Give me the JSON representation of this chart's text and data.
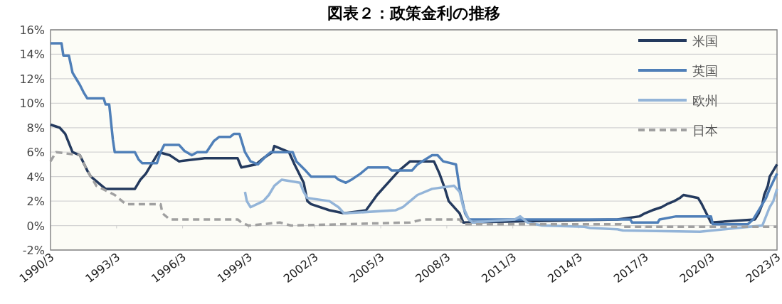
{
  "chart_data": {
    "type": "line",
    "title": "図表２：政策金利の推移",
    "xlim": [
      "1990-03",
      "2023-03"
    ],
    "ylim": [
      -2,
      16
    ],
    "xticks": [
      {
        "value": "1990-03",
        "label": "1990/3"
      },
      {
        "value": "1993-03",
        "label": "1993/3"
      },
      {
        "value": "1996-03",
        "label": "1996/3"
      },
      {
        "value": "1999-03",
        "label": "1999/3"
      },
      {
        "value": "2002-03",
        "label": "2002/3"
      },
      {
        "value": "2005-03",
        "label": "2005/3"
      },
      {
        "value": "2008-03",
        "label": "2008/3"
      },
      {
        "value": "2011-03",
        "label": "2011/3"
      },
      {
        "value": "2014-03",
        "label": "2014/3"
      },
      {
        "value": "2017-03",
        "label": "2017/3"
      },
      {
        "value": "2020-03",
        "label": "2020/3"
      },
      {
        "value": "2023-03",
        "label": "2023/3"
      }
    ],
    "yticks": [
      {
        "value": -2,
        "label": "-2%"
      },
      {
        "value": 0,
        "label": "0%"
      },
      {
        "value": 2,
        "label": "2%"
      },
      {
        "value": 4,
        "label": "4%"
      },
      {
        "value": 6,
        "label": "6%"
      },
      {
        "value": 8,
        "label": "8%"
      },
      {
        "value": 10,
        "label": "10%"
      },
      {
        "value": 12,
        "label": "12%"
      },
      {
        "value": 14,
        "label": "14%"
      },
      {
        "value": 16,
        "label": "16%"
      }
    ],
    "grid": "y",
    "legend": "top right",
    "series": [
      {
        "name": "米国",
        "color": "#243a5e",
        "line_style": "solid",
        "x": [
          "1990-03",
          "1990-08",
          "1990-11",
          "1991-03",
          "1991-07",
          "1991-11",
          "1992-01",
          "1992-07",
          "1992-09",
          "1994-01",
          "1994-04",
          "1994-07",
          "1994-10",
          "1995-02",
          "1995-08",
          "1996-01",
          "1997-03",
          "1998-09",
          "1998-11",
          "1999-07",
          "1999-11",
          "2000-04",
          "2000-05",
          "2001-01",
          "2001-04",
          "2001-09",
          "2001-11",
          "2002-01",
          "2002-11",
          "2003-07",
          "2004-07",
          "2005-01",
          "2006-01",
          "2006-07",
          "2007-08",
          "2007-11",
          "2008-02",
          "2008-04",
          "2008-10",
          "2008-12",
          "2015-12",
          "2016-12",
          "2017-03",
          "2017-07",
          "2017-12",
          "2018-03",
          "2018-07",
          "2018-10",
          "2018-12",
          "2019-08",
          "2019-10",
          "2020-03",
          "2022-03",
          "2022-05",
          "2022-07",
          "2022-08",
          "2022-10",
          "2022-11",
          "2023-01",
          "2023-03"
        ],
        "values": [
          8.25,
          8.0,
          7.5,
          6.0,
          5.75,
          4.5,
          4.0,
          3.25,
          3.0,
          3.0,
          3.75,
          4.25,
          5.0,
          6.0,
          5.75,
          5.25,
          5.5,
          5.5,
          4.75,
          5.0,
          5.5,
          6.0,
          6.5,
          6.0,
          5.0,
          3.5,
          2.0,
          1.75,
          1.25,
          1.0,
          1.25,
          2.5,
          4.5,
          5.25,
          5.25,
          4.25,
          3.0,
          2.0,
          1.0,
          0.25,
          0.5,
          0.75,
          1.0,
          1.25,
          1.5,
          1.75,
          2.0,
          2.25,
          2.5,
          2.25,
          1.75,
          0.25,
          0.5,
          1.0,
          1.75,
          2.5,
          3.25,
          4.0,
          4.5,
          5.0
        ]
      },
      {
        "name": "英国",
        "color": "#4f7fb8",
        "line_style": "solid",
        "x": [
          "1990-03",
          "1990-09",
          "1990-10",
          "1991-01",
          "1991-03",
          "1991-07",
          "1991-09",
          "1991-11",
          "1992-08",
          "1992-09",
          "1992-11",
          "1993-01",
          "1993-02",
          "1994-01",
          "1994-03",
          "1994-05",
          "1995-01",
          "1995-03",
          "1995-05",
          "1996-01",
          "1996-04",
          "1996-08",
          "1996-11",
          "1997-04",
          "1997-08",
          "1997-11",
          "1998-05",
          "1998-07",
          "1998-10",
          "1999-01",
          "1999-04",
          "1999-08",
          "2000-01",
          "2000-03",
          "2001-03",
          "2001-05",
          "2001-10",
          "2002-01",
          "2003-02",
          "2003-04",
          "2003-08",
          "2003-11",
          "2004-04",
          "2004-08",
          "2005-07",
          "2005-09",
          "2006-08",
          "2006-11",
          "2007-07",
          "2007-10",
          "2008-01",
          "2008-08",
          "2008-10",
          "2009-01",
          "2009-03",
          "2016-07",
          "2016-08",
          "2017-10",
          "2017-11",
          "2018-08",
          "2020-03",
          "2020-04",
          "2021-11",
          "2022-02",
          "2022-05",
          "2022-09",
          "2022-11",
          "2023-03"
        ],
        "values": [
          14.9,
          14.9,
          13.9,
          13.9,
          12.5,
          11.5,
          10.9,
          10.4,
          10.4,
          9.9,
          9.9,
          7.0,
          6.0,
          6.0,
          5.4,
          5.1,
          5.1,
          6.0,
          6.6,
          6.6,
          6.1,
          5.75,
          6.0,
          6.0,
          6.9,
          7.25,
          7.25,
          7.5,
          7.5,
          6.0,
          5.25,
          5.0,
          5.75,
          6.0,
          6.0,
          5.25,
          4.5,
          4.0,
          4.0,
          3.75,
          3.5,
          3.75,
          4.25,
          4.75,
          4.75,
          4.5,
          4.5,
          5.0,
          5.75,
          5.75,
          5.25,
          5.0,
          3.0,
          1.0,
          0.5,
          0.5,
          0.25,
          0.25,
          0.5,
          0.75,
          0.75,
          0.1,
          0.1,
          0.5,
          1.25,
          2.25,
          3.0,
          4.25
        ]
      },
      {
        "name": "欧州",
        "color": "#93b4d8",
        "line_style": "solid",
        "x": [
          "1999-01",
          "1999-02",
          "1999-04",
          "1999-11",
          "2000-02",
          "2000-05",
          "2000-09",
          "2001-07",
          "2001-09",
          "2001-11",
          "2002-11",
          "2003-04",
          "2003-07",
          "2005-11",
          "2006-03",
          "2006-07",
          "2006-11",
          "2007-07",
          "2008-07",
          "2008-10",
          "2008-12",
          "2009-03",
          "2009-05",
          "2011-04",
          "2011-07",
          "2011-11",
          "2012-07",
          "2014-06",
          "2014-09",
          "2015-12",
          "2016-03",
          "2019-09",
          "2022-07",
          "2022-09",
          "2022-11",
          "2023-01",
          "2023-03"
        ],
        "values": [
          2.75,
          2.0,
          1.5,
          2.0,
          2.5,
          3.25,
          3.75,
          3.5,
          2.75,
          2.25,
          2.0,
          1.5,
          1.0,
          1.25,
          1.5,
          2.0,
          2.5,
          3.0,
          3.25,
          2.75,
          1.5,
          0.5,
          0.25,
          0.5,
          0.75,
          0.25,
          0.0,
          -0.1,
          -0.2,
          -0.3,
          -0.4,
          -0.5,
          0.0,
          0.75,
          1.5,
          2.0,
          3.0
        ]
      },
      {
        "name": "日本",
        "color": "#a0a0a0",
        "line_style": "dashed",
        "x": [
          "1990-03",
          "1990-06",
          "1991-07",
          "1991-11",
          "1992-04",
          "1993-02",
          "1993-08",
          "1995-03",
          "1995-04",
          "1995-08",
          "1998-09",
          "1998-11",
          "1999-03",
          "2000-08",
          "2001-02",
          "2006-07",
          "2007-02",
          "2008-10",
          "2008-12",
          "2016-02",
          "2016-03",
          "2023-03"
        ],
        "values": [
          5.25,
          6.0,
          5.75,
          4.5,
          3.25,
          2.5,
          1.75,
          1.75,
          1.0,
          0.5,
          0.5,
          0.25,
          0.0,
          0.25,
          0.0,
          0.25,
          0.5,
          0.5,
          0.1,
          0.1,
          -0.1,
          -0.1
        ]
      }
    ]
  }
}
